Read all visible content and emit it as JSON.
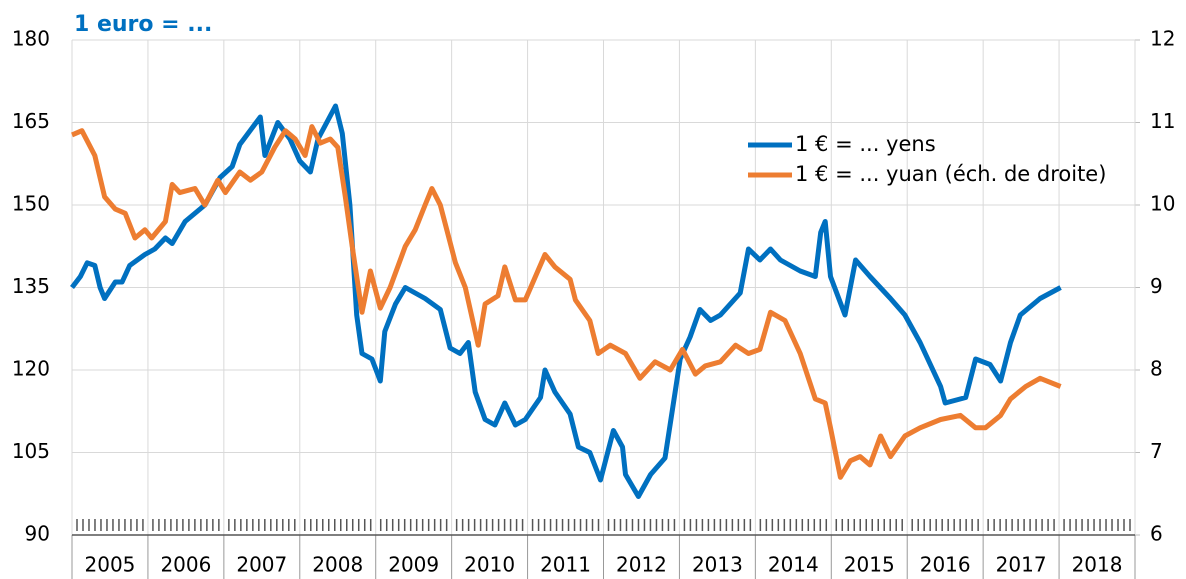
{
  "chart_data": {
    "type": "line",
    "annotation": "1 euro = ...",
    "categories": [
      "2005",
      "2006",
      "2007",
      "2008",
      "2009",
      "2010",
      "2011",
      "2012",
      "2013",
      "2014",
      "2015",
      "2016",
      "2017",
      "2018"
    ],
    "xlim": [
      2005,
      2019
    ],
    "ylim": [
      90,
      180
    ],
    "yticks": [
      90,
      105,
      120,
      135,
      150,
      165,
      180
    ],
    "y2lim": [
      6,
      12
    ],
    "y2ticks": [
      6,
      7,
      8,
      9,
      10,
      11,
      12
    ],
    "grid": true,
    "legend": "upper right",
    "series": [
      {
        "name": "1 € = ... yens",
        "color": "#0070c0",
        "axis": "y",
        "x": [
          2005.0,
          2005.11,
          2005.2,
          2005.3,
          2005.37,
          2005.43,
          2005.57,
          2005.66,
          2005.76,
          2005.96,
          2006.09,
          2006.23,
          2006.32,
          2006.49,
          2006.75,
          2006.95,
          2007.11,
          2007.21,
          2007.48,
          2007.54,
          2007.71,
          2007.87,
          2008.0,
          2008.14,
          2008.24,
          2008.47,
          2008.56,
          2008.66,
          2008.75,
          2008.82,
          2008.95,
          2009.06,
          2009.12,
          2009.26,
          2009.39,
          2009.52,
          2009.65,
          2009.85,
          2009.98,
          2010.11,
          2010.22,
          2010.31,
          2010.44,
          2010.57,
          2010.7,
          2010.84,
          2010.97,
          2011.17,
          2011.23,
          2011.36,
          2011.56,
          2011.67,
          2011.82,
          2011.96,
          2012.13,
          2012.25,
          2012.29,
          2012.46,
          2012.62,
          2012.81,
          2013.01,
          2013.14,
          2013.27,
          2013.41,
          2013.54,
          2013.67,
          2013.8,
          2013.91,
          2014.06,
          2014.2,
          2014.33,
          2014.59,
          2014.79,
          2014.86,
          2014.92,
          2014.99,
          2015.18,
          2015.32,
          2015.51,
          2015.78,
          2015.97,
          2016.17,
          2016.44,
          2016.5,
          2016.77,
          2016.9,
          2017.09,
          2017.23,
          2017.36,
          2017.49,
          2017.75,
          2018.02
        ],
        "values": [
          135,
          137,
          139.5,
          139,
          135,
          133,
          136,
          136,
          139,
          141,
          142,
          144,
          143,
          147,
          150,
          155,
          157,
          161,
          166,
          159,
          165,
          162,
          158,
          156,
          162,
          168,
          163,
          150,
          130,
          123,
          122,
          118,
          127,
          132,
          135,
          134,
          133,
          131,
          124,
          123,
          125,
          116,
          111,
          110,
          114,
          110,
          111,
          115,
          120,
          116,
          112,
          106,
          105,
          100,
          109,
          106,
          101,
          97,
          101,
          104,
          122,
          126,
          131,
          129,
          130,
          132,
          134,
          142,
          140,
          142,
          140,
          138,
          137,
          145,
          147,
          137,
          130,
          140,
          137,
          133,
          130,
          125,
          117,
          114,
          115,
          122,
          121,
          118,
          125,
          130,
          133,
          135
        ]
      },
      {
        "name": "1 € = ... yuan (éch. de droite)",
        "color": "#ed7d31",
        "axis": "y2",
        "x": [
          2005.0,
          2005.13,
          2005.3,
          2005.43,
          2005.57,
          2005.7,
          2005.83,
          2005.96,
          2006.05,
          2006.23,
          2006.32,
          2006.42,
          2006.62,
          2006.75,
          2006.92,
          2007.02,
          2007.21,
          2007.35,
          2007.5,
          2007.67,
          2007.81,
          2007.94,
          2008.07,
          2008.16,
          2008.27,
          2008.4,
          2008.5,
          2008.6,
          2008.69,
          2008.82,
          2008.93,
          2009.06,
          2009.19,
          2009.39,
          2009.52,
          2009.65,
          2009.74,
          2009.85,
          2010.05,
          2010.18,
          2010.35,
          2010.44,
          2010.61,
          2010.7,
          2010.84,
          2010.97,
          2011.23,
          2011.36,
          2011.56,
          2011.63,
          2011.82,
          2011.93,
          2012.09,
          2012.29,
          2012.48,
          2012.68,
          2012.88,
          2013.04,
          2013.21,
          2013.34,
          2013.54,
          2013.74,
          2013.91,
          2014.06,
          2014.2,
          2014.39,
          2014.59,
          2014.79,
          2014.92,
          2014.99,
          2015.12,
          2015.25,
          2015.38,
          2015.51,
          2015.65,
          2015.78,
          2015.97,
          2016.17,
          2016.44,
          2016.7,
          2016.9,
          2017.03,
          2017.23,
          2017.36,
          2017.56,
          2017.75,
          2018.02
        ],
        "values": [
          10.85,
          10.9,
          10.6,
          10.1,
          9.95,
          9.9,
          9.6,
          9.7,
          9.6,
          9.8,
          10.25,
          10.15,
          10.2,
          10.0,
          10.3,
          10.15,
          10.4,
          10.3,
          10.4,
          10.7,
          10.9,
          10.8,
          10.6,
          10.95,
          10.75,
          10.8,
          10.7,
          10.1,
          9.5,
          8.7,
          9.2,
          8.75,
          9.0,
          9.5,
          9.7,
          10.0,
          10.2,
          10.0,
          9.3,
          9.0,
          8.3,
          8.8,
          8.9,
          9.25,
          8.85,
          8.85,
          9.4,
          9.25,
          9.1,
          8.85,
          8.6,
          8.2,
          8.3,
          8.2,
          7.9,
          8.1,
          8.0,
          8.25,
          7.95,
          8.05,
          8.1,
          8.3,
          8.2,
          8.25,
          8.7,
          8.6,
          8.2,
          7.65,
          7.6,
          7.3,
          6.7,
          6.9,
          6.95,
          6.85,
          7.2,
          6.95,
          7.2,
          7.3,
          7.4,
          7.45,
          7.3,
          7.3,
          7.45,
          7.65,
          7.8,
          7.9,
          7.8
        ]
      }
    ]
  }
}
